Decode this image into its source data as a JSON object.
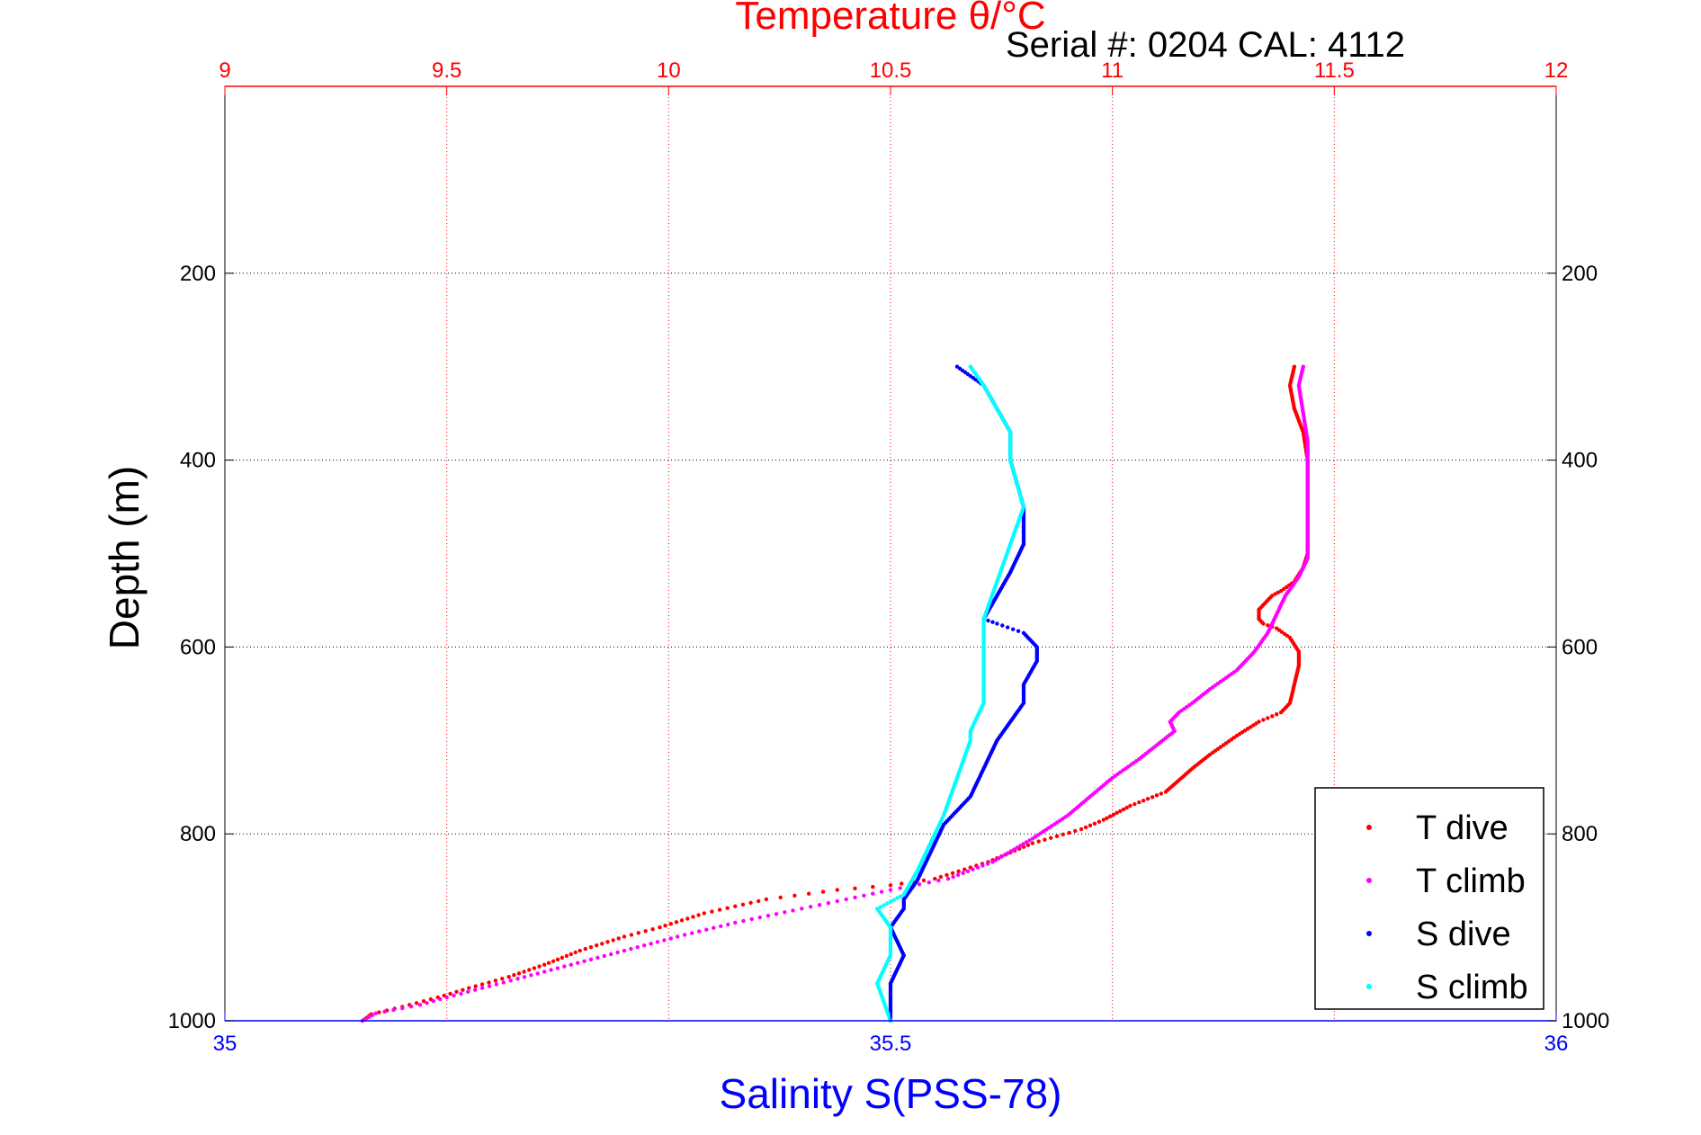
{
  "chart_data": {
    "type": "scatter",
    "title": "Temperature θ/°C",
    "subtitle": "Serial #: 0204  CAL: 4112",
    "xlabel": "Salinity S(PSS-78)",
    "ylabel": "Depth (m)",
    "x_top_axis": {
      "label": "Temperature θ/°C",
      "range": [
        9,
        12
      ],
      "ticks": [
        "9",
        "9.5",
        "10",
        "10.5",
        "11",
        "11.5",
        "12"
      ],
      "color": "#ff0000"
    },
    "x_bottom_axis": {
      "label": "Salinity S(PSS-78)",
      "range": [
        35,
        36
      ],
      "ticks": [
        "35",
        "35.5",
        "36"
      ],
      "color": "#0000ff"
    },
    "y_axis": {
      "label": "Depth (m)",
      "range": [
        0,
        1000
      ],
      "reversed": true,
      "ticks": [
        "200",
        "400",
        "600",
        "800",
        "1000"
      ]
    },
    "grid": true,
    "legend_position": "bottom-right",
    "series": [
      {
        "name": "T dive",
        "axis": "temperature",
        "color": "#ff0000",
        "points": [
          [
            11.41,
            300
          ],
          [
            11.4,
            320
          ],
          [
            11.41,
            345
          ],
          [
            11.43,
            370
          ],
          [
            11.44,
            400
          ],
          [
            11.44,
            450
          ],
          [
            11.44,
            500
          ],
          [
            11.43,
            515
          ],
          [
            11.41,
            530
          ],
          [
            11.38,
            540
          ],
          [
            11.36,
            545
          ],
          [
            11.34,
            555
          ],
          [
            11.33,
            560
          ],
          [
            11.33,
            570
          ],
          [
            11.34,
            575
          ],
          [
            11.37,
            580
          ],
          [
            11.4,
            590
          ],
          [
            11.42,
            605
          ],
          [
            11.42,
            620
          ],
          [
            11.41,
            640
          ],
          [
            11.4,
            660
          ],
          [
            11.38,
            670
          ],
          [
            11.33,
            680
          ],
          [
            11.28,
            695
          ],
          [
            11.22,
            715
          ],
          [
            11.18,
            730
          ],
          [
            11.12,
            755
          ],
          [
            11.04,
            770
          ],
          [
            10.98,
            785
          ],
          [
            10.93,
            795
          ],
          [
            10.82,
            810
          ],
          [
            10.72,
            830
          ],
          [
            10.6,
            848
          ],
          [
            10.5,
            855
          ],
          [
            10.38,
            860
          ],
          [
            10.22,
            870
          ],
          [
            10.08,
            885
          ],
          [
            9.98,
            900
          ],
          [
            9.9,
            910
          ],
          [
            9.8,
            925
          ],
          [
            9.72,
            940
          ],
          [
            9.64,
            953
          ],
          [
            9.55,
            965
          ],
          [
            9.48,
            975
          ],
          [
            9.4,
            985
          ],
          [
            9.33,
            993
          ],
          [
            9.31,
            1000
          ]
        ]
      },
      {
        "name": "T climb",
        "axis": "temperature",
        "color": "#ff00ff",
        "points": [
          [
            11.43,
            300
          ],
          [
            11.42,
            320
          ],
          [
            11.43,
            350
          ],
          [
            11.44,
            380
          ],
          [
            11.44,
            450
          ],
          [
            11.44,
            505
          ],
          [
            11.42,
            525
          ],
          [
            11.39,
            545
          ],
          [
            11.37,
            565
          ],
          [
            11.35,
            585
          ],
          [
            11.32,
            605
          ],
          [
            11.28,
            625
          ],
          [
            11.25,
            635
          ],
          [
            11.22,
            645
          ],
          [
            11.18,
            660
          ],
          [
            11.15,
            670
          ],
          [
            11.13,
            680
          ],
          [
            11.14,
            690
          ],
          [
            11.1,
            705
          ],
          [
            11.06,
            720
          ],
          [
            11.0,
            740
          ],
          [
            10.95,
            760
          ],
          [
            10.9,
            780
          ],
          [
            10.82,
            805
          ],
          [
            10.73,
            830
          ],
          [
            10.63,
            848
          ],
          [
            10.5,
            860
          ],
          [
            10.4,
            870
          ],
          [
            10.28,
            882
          ],
          [
            10.15,
            895
          ],
          [
            10.02,
            910
          ],
          [
            9.9,
            925
          ],
          [
            9.78,
            940
          ],
          [
            9.66,
            955
          ],
          [
            9.58,
            965
          ],
          [
            9.5,
            975
          ],
          [
            9.44,
            983
          ],
          [
            9.34,
            992
          ],
          [
            9.31,
            1000
          ]
        ]
      },
      {
        "name": "S dive",
        "axis": "salinity",
        "color": "#0000ff",
        "points": [
          [
            35.55,
            300
          ],
          [
            35.57,
            320
          ],
          [
            35.58,
            345
          ],
          [
            35.59,
            370
          ],
          [
            35.59,
            400
          ],
          [
            35.6,
            450
          ],
          [
            35.6,
            490
          ],
          [
            35.59,
            520
          ],
          [
            35.58,
            545
          ],
          [
            35.57,
            570
          ],
          [
            35.58,
            575
          ],
          [
            35.6,
            585
          ],
          [
            35.61,
            600
          ],
          [
            35.61,
            615
          ],
          [
            35.6,
            640
          ],
          [
            35.6,
            660
          ],
          [
            35.59,
            680
          ],
          [
            35.58,
            700
          ],
          [
            35.57,
            730
          ],
          [
            35.56,
            760
          ],
          [
            35.54,
            790
          ],
          [
            35.53,
            820
          ],
          [
            35.52,
            850
          ],
          [
            35.51,
            870
          ],
          [
            35.51,
            880
          ],
          [
            35.5,
            900
          ],
          [
            35.51,
            930
          ],
          [
            35.5,
            960
          ],
          [
            35.5,
            1000
          ]
        ]
      },
      {
        "name": "S climb",
        "axis": "salinity",
        "color": "#00ffff",
        "points": [
          [
            35.56,
            300
          ],
          [
            35.57,
            320
          ],
          [
            35.58,
            345
          ],
          [
            35.59,
            370
          ],
          [
            35.59,
            400
          ],
          [
            35.6,
            450
          ],
          [
            35.59,
            490
          ],
          [
            35.58,
            530
          ],
          [
            35.57,
            570
          ],
          [
            35.57,
            600
          ],
          [
            35.57,
            640
          ],
          [
            35.57,
            660
          ],
          [
            35.56,
            690
          ],
          [
            35.56,
            700
          ],
          [
            35.55,
            740
          ],
          [
            35.54,
            780
          ],
          [
            35.53,
            810
          ],
          [
            35.52,
            840
          ],
          [
            35.51,
            865
          ],
          [
            35.49,
            880
          ],
          [
            35.5,
            900
          ],
          [
            35.5,
            930
          ],
          [
            35.49,
            960
          ],
          [
            35.5,
            1000
          ]
        ]
      }
    ]
  }
}
